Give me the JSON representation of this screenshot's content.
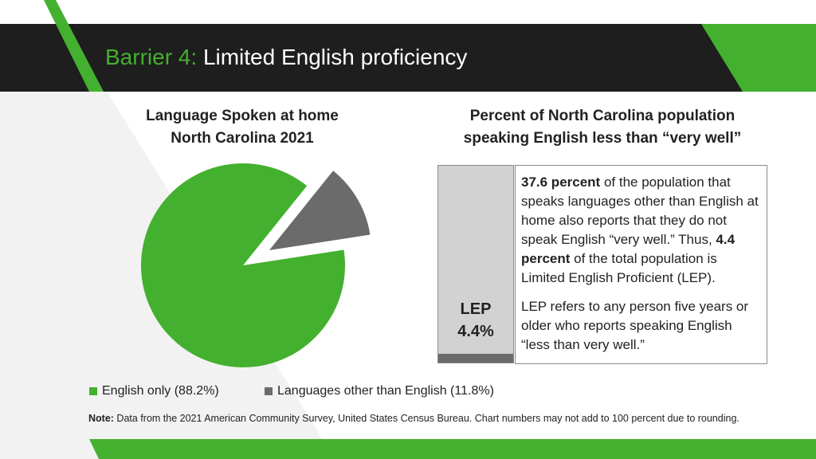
{
  "header": {
    "title_prefix": "Barrier 4:",
    "title_main": "Limited English proficiency"
  },
  "colors": {
    "green": "#44b02f",
    "gray": "#6b6b6b",
    "light_gray": "#d2d2d2",
    "dark": "#1e1e1e"
  },
  "pie_heading": {
    "line1": "Language Spoken at home",
    "line2": "North Carolina 2021"
  },
  "bar_heading": {
    "line1": "Percent of North Carolina population",
    "line2": "speaking English less than “very well”"
  },
  "chart_data": [
    {
      "type": "pie",
      "title": "Language Spoken at home North Carolina 2021",
      "slices": [
        {
          "label": "English only",
          "value": 88.2,
          "color": "#44b02f"
        },
        {
          "label": "Languages other than English",
          "value": 11.8,
          "color": "#6b6b6b",
          "exploded": true
        }
      ],
      "legend": [
        "English only (88.2%)",
        "Languages other than English (11.8%)"
      ],
      "legend_position": "bottom"
    },
    {
      "type": "bar",
      "title": "Percent of North Carolina population speaking English less than “very well”",
      "categories": [
        "LEP"
      ],
      "values": [
        4.4
      ],
      "data_label": "4.4%",
      "ylim": [
        0,
        100
      ]
    }
  ],
  "bar": {
    "label_top": "LEP",
    "label_value": "4.4%"
  },
  "explanation": {
    "p1_bold1": "37.6 percent",
    "p1_text1": " of the population that speaks languages other than English at home also reports that they do not speak English “very well.” Thus, ",
    "p1_bold2": "4.4 percent",
    "p1_text2": " of the total population is Limited English Proficient (LEP).",
    "p2": "LEP refers to any person five years or older who reports speaking English “less than very well.”"
  },
  "legend": {
    "item1": "English only (88.2%)",
    "item2": "Languages other than English (11.8%)"
  },
  "note": {
    "label": "Note:",
    "text": " Data from the 2021 American Community Survey, United States Census Bureau. Chart numbers may not add to 100 percent due to rounding."
  }
}
